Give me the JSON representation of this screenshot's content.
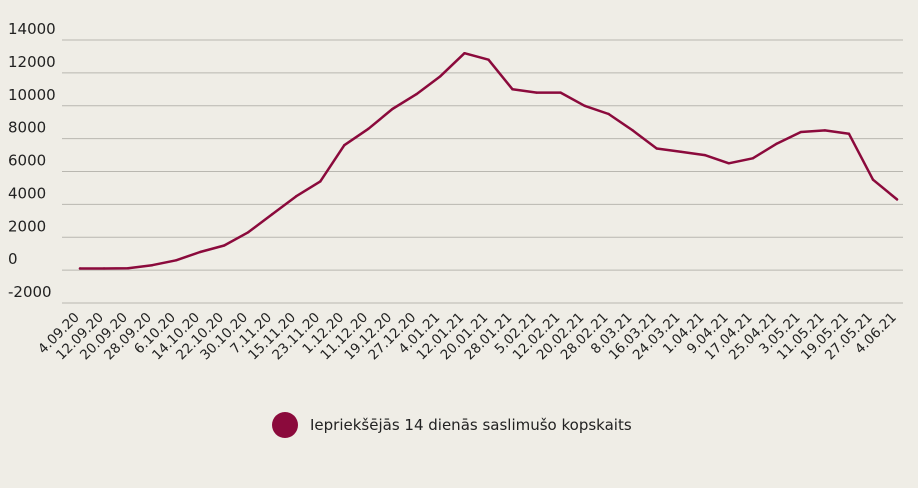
{
  "chart_data": {
    "type": "line",
    "title": "",
    "xlabel": "",
    "ylabel": "",
    "ylim": [
      -2000,
      14000
    ],
    "yticks": [
      14000,
      12000,
      10000,
      8000,
      6000,
      4000,
      2000,
      0,
      -2000
    ],
    "xticks": [
      "4.09.20",
      "12.09.20",
      "20.09.20",
      "28.09.20",
      "6.10.20",
      "14.10.20",
      "22.10.20",
      "30.10.20",
      "7.11.20",
      "15.11.20",
      "23.11.20",
      "1.12.20",
      "11.12.20",
      "19.12.20",
      "27.12.20",
      "4.01.21",
      "12.01.21",
      "20.01.21",
      "28.01.21",
      "5.02.21",
      "12.02.21",
      "20.02.21",
      "28.02.21",
      "8.03.21",
      "16.03.21",
      "24.03.21",
      "1.04.21",
      "9.04.21",
      "17.04.21",
      "25.04.21",
      "3.05.21",
      "11.05.21",
      "19.05.21",
      "27.05.21",
      "4.06.21"
    ],
    "grid": true,
    "legend_position": "bottom",
    "series": [
      {
        "name": "Iepriekšējās 14 dienās saslimušo kopskaits",
        "color": "#8b0a3c",
        "points": [
          [
            "4.09.20",
            100
          ],
          [
            "12.09.20",
            100
          ],
          [
            "20.09.20",
            120
          ],
          [
            "28.09.20",
            300
          ],
          [
            "6.10.20",
            600
          ],
          [
            "14.10.20",
            1100
          ],
          [
            "22.10.20",
            1500
          ],
          [
            "30.10.20",
            2300
          ],
          [
            "7.11.20",
            3400
          ],
          [
            "15.11.20",
            4500
          ],
          [
            "23.11.20",
            5400
          ],
          [
            "1.12.20",
            7600
          ],
          [
            "11.12.20",
            8600
          ],
          [
            "19.12.20",
            9800
          ],
          [
            "27.12.20",
            10700
          ],
          [
            "4.01.21",
            11800
          ],
          [
            "12.01.21",
            13200
          ],
          [
            "20.01.21",
            12800
          ],
          [
            "28.01.21",
            11000
          ],
          [
            "5.02.21",
            10800
          ],
          [
            "12.02.21",
            10800
          ],
          [
            "20.02.21",
            10000
          ],
          [
            "28.02.21",
            9500
          ],
          [
            "8.03.21",
            8500
          ],
          [
            "16.03.21",
            7400
          ],
          [
            "24.03.21",
            7200
          ],
          [
            "1.04.21",
            7000
          ],
          [
            "9.04.21",
            6500
          ],
          [
            "17.04.21",
            6800
          ],
          [
            "25.04.21",
            7700
          ],
          [
            "3.05.21",
            8400
          ],
          [
            "11.05.21",
            8500
          ],
          [
            "19.05.21",
            8300
          ],
          [
            "27.05.21",
            5500
          ],
          [
            "4.06.21",
            4300
          ]
        ]
      }
    ]
  },
  "legend": {
    "label": "Iepriekšējās 14 dienās saslimušo kopskaits"
  }
}
